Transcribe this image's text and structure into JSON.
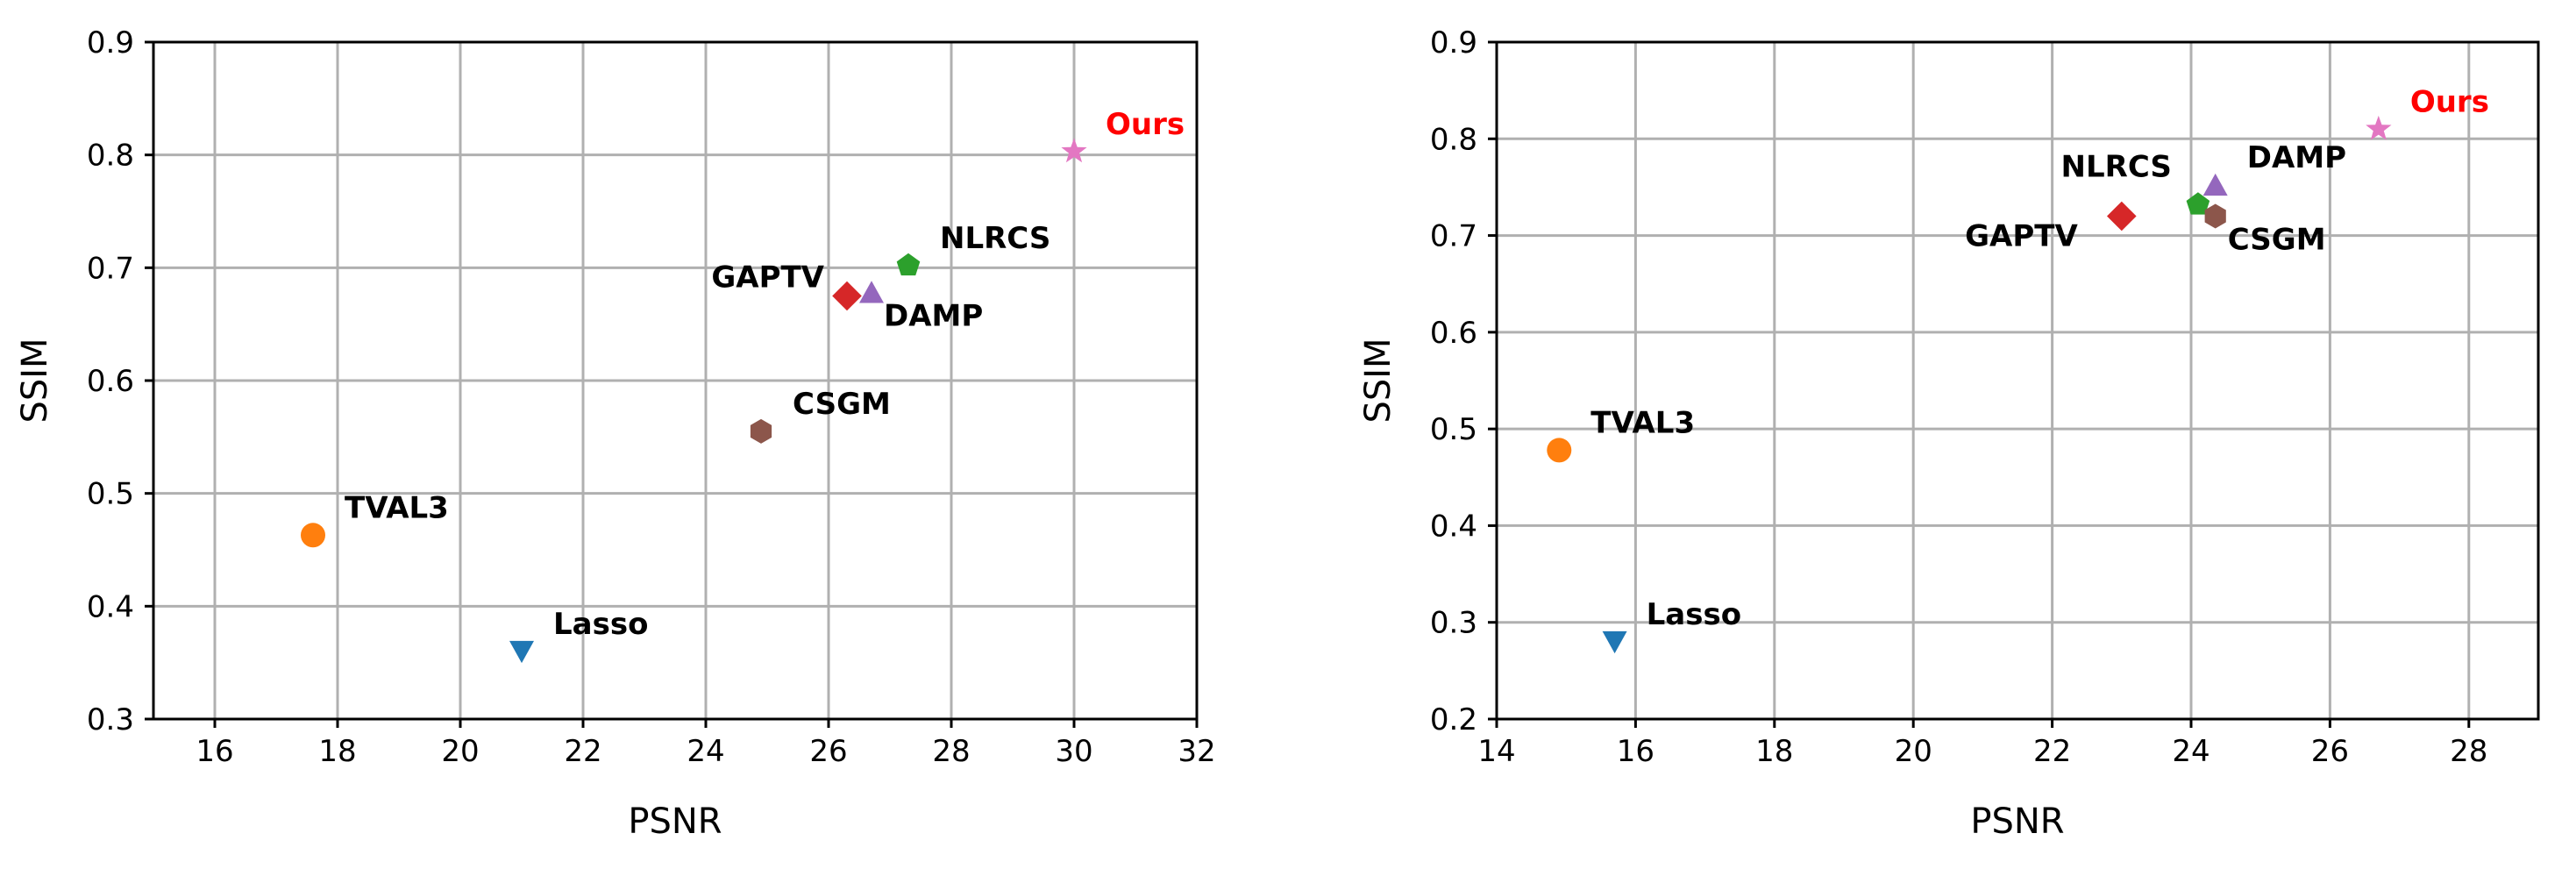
{
  "chart_data": [
    {
      "type": "scatter",
      "xlabel": "PSNR",
      "ylabel": "SSIM",
      "xlim": [
        15,
        32
      ],
      "ylim": [
        0.3,
        0.9
      ],
      "xticks": [
        "16",
        "18",
        "20",
        "22",
        "24",
        "26",
        "28",
        "30",
        "32"
      ],
      "yticks": [
        "0.3",
        "0.4",
        "0.5",
        "0.6",
        "0.7",
        "0.8",
        "0.9"
      ],
      "grid": true,
      "points": [
        {
          "label": "Lasso",
          "x": 21.0,
          "y": 0.36,
          "marker": "triangle-down",
          "color": "#1f77b4",
          "label_color": "#000000",
          "label_pos": "right-above"
        },
        {
          "label": "TVAL3",
          "x": 17.6,
          "y": 0.463,
          "marker": "circle",
          "color": "#ff7f0e",
          "label_color": "#000000",
          "label_pos": "right-above"
        },
        {
          "label": "NLRCS",
          "x": 27.3,
          "y": 0.702,
          "marker": "pentagon",
          "color": "#2ca02c",
          "label_color": "#000000",
          "label_pos": "right-above"
        },
        {
          "label": "GAPTV",
          "x": 26.3,
          "y": 0.675,
          "marker": "diamond",
          "color": "#d62728",
          "label_color": "#000000",
          "label_pos": "left-above"
        },
        {
          "label": "DAMP",
          "x": 26.7,
          "y": 0.678,
          "marker": "triangle-up",
          "color": "#9467bd",
          "label_color": "#000000",
          "label_pos": "right-below"
        },
        {
          "label": "CSGM",
          "x": 24.9,
          "y": 0.555,
          "marker": "hexagon",
          "color": "#8c564b",
          "label_color": "#000000",
          "label_pos": "right-above"
        },
        {
          "label": "Ours",
          "x": 30.0,
          "y": 0.803,
          "marker": "star",
          "color": "#e377c2",
          "label_color": "#ff0000",
          "label_pos": "right-above"
        }
      ]
    },
    {
      "type": "scatter",
      "xlabel": "PSNR",
      "ylabel": "SSIM",
      "xlim": [
        14,
        29
      ],
      "ylim": [
        0.2,
        0.9
      ],
      "xticks": [
        "14",
        "16",
        "18",
        "20",
        "22",
        "24",
        "26",
        "28"
      ],
      "yticks": [
        "0.2",
        "0.3",
        "0.4",
        "0.5",
        "0.6",
        "0.7",
        "0.8",
        "0.9"
      ],
      "grid": true,
      "points": [
        {
          "label": "Lasso",
          "x": 15.7,
          "y": 0.28,
          "marker": "triangle-down",
          "color": "#1f77b4",
          "label_color": "#000000",
          "label_pos": "right-above"
        },
        {
          "label": "TVAL3",
          "x": 14.9,
          "y": 0.478,
          "marker": "circle",
          "color": "#ff7f0e",
          "label_color": "#000000",
          "label_pos": "right-above"
        },
        {
          "label": "NLRCS",
          "x": 24.1,
          "y": 0.732,
          "marker": "pentagon",
          "color": "#2ca02c",
          "label_color": "#000000",
          "label_pos": "left-far-above"
        },
        {
          "label": "GAPTV",
          "x": 23.0,
          "y": 0.72,
          "marker": "diamond",
          "color": "#d62728",
          "label_color": "#000000",
          "label_pos": "left-below"
        },
        {
          "label": "DAMP",
          "x": 24.35,
          "y": 0.752,
          "marker": "triangle-up",
          "color": "#9467bd",
          "label_color": "#000000",
          "label_pos": "right-above"
        },
        {
          "label": "CSGM",
          "x": 24.35,
          "y": 0.72,
          "marker": "hexagon",
          "color": "#8c564b",
          "label_color": "#000000",
          "label_pos": "right-below"
        },
        {
          "label": "Ours",
          "x": 26.7,
          "y": 0.81,
          "marker": "star",
          "color": "#e377c2",
          "label_color": "#ff0000",
          "label_pos": "right-above"
        }
      ]
    }
  ]
}
